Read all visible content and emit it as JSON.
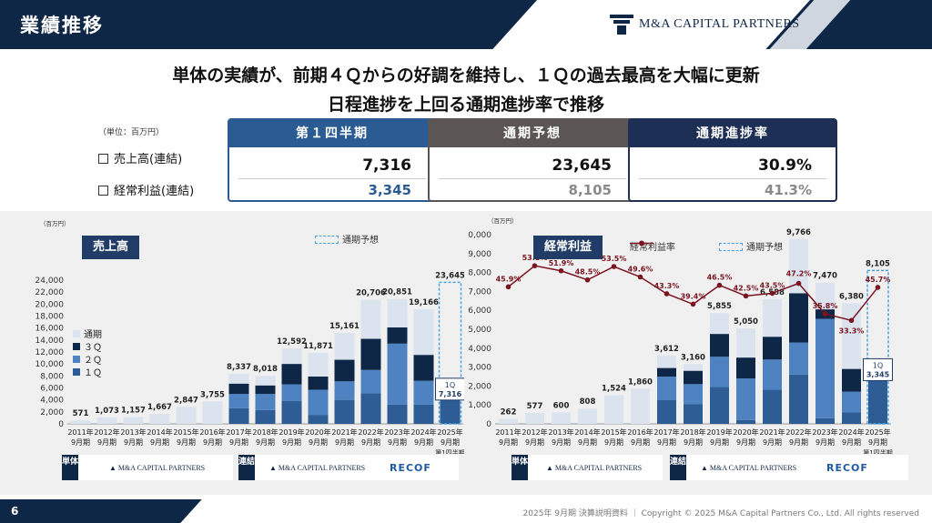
{
  "header": {
    "title": "業績推移",
    "logo": "M&A CAPITAL PARTNERS"
  },
  "headline": {
    "line1": "単体の実績が、前期４Ｑからの好調を維持し、１Ｑの過去最高を大幅に更新",
    "line2": "日程進捗を上回る通期進捗率で推移"
  },
  "summary": {
    "unit": "（単位：百万円）",
    "row1": "売上高(連結)",
    "row2": "経常利益(連結)",
    "cols": [
      {
        "label": "第１四半期",
        "v1": "7,316",
        "v2": "3,345",
        "v2color": "#2a5b93"
      },
      {
        "label": "通期予想",
        "v1": "23,645",
        "v2": "8,105",
        "v2color": "#8a8a8a"
      },
      {
        "label": "通期進捗率",
        "v1": "30.9%",
        "v2": "41.3%",
        "v2color": "#8a8a8a"
      }
    ]
  },
  "colors": {
    "q1": "#2e5c94",
    "q2": "#4e82c1",
    "q3": "#0f2747",
    "annual": "#dbe3ee",
    "forecast": "#4aa3df",
    "line": "#7a1420"
  },
  "chart_data": [
    {
      "type": "bar",
      "title": "売上高",
      "unit": "（百万円）",
      "legend_forecast": "通期予想",
      "stack_labels": [
        "通期",
        "３Ｑ",
        "２Ｑ",
        "１Ｑ"
      ],
      "categories": [
        [
          "2011年",
          "9月期"
        ],
        [
          "2012年",
          "9月期"
        ],
        [
          "2013年",
          "9月期"
        ],
        [
          "2014年",
          "9月期"
        ],
        [
          "2015年",
          "9月期"
        ],
        [
          "2016年",
          "9月期"
        ],
        [
          "2017年",
          "9月期"
        ],
        [
          "2018年",
          "9月期"
        ],
        [
          "2019年",
          "9月期"
        ],
        [
          "2020年",
          "9月期"
        ],
        [
          "2021年",
          "9月期"
        ],
        [
          "2022年",
          "9月期"
        ],
        [
          "2023年",
          "9月期"
        ],
        [
          "2024年",
          "9月期"
        ],
        [
          "2025年",
          "9月期",
          "第1四半期"
        ]
      ],
      "totals": [
        571,
        1073,
        1157,
        1667,
        2847,
        3755,
        8337,
        8018,
        12592,
        11871,
        15161,
        20706,
        20851,
        19166,
        null
      ],
      "total_labels": [
        "571",
        "1,073",
        "1,157",
        "1,667",
        "2,847",
        "3,755",
        "8,337",
        "8,018",
        "12,592",
        "11,871",
        "15,161",
        "20,706",
        "20,851",
        "19,166",
        "23,645"
      ],
      "q1": [
        null,
        null,
        null,
        null,
        null,
        null,
        2600,
        2300,
        3800,
        1500,
        4000,
        5100,
        3200,
        3200,
        7316
      ],
      "q2": [
        null,
        null,
        null,
        null,
        null,
        null,
        2400,
        2700,
        2800,
        4200,
        3100,
        3900,
        10200,
        4000,
        null
      ],
      "q3": [
        null,
        null,
        null,
        null,
        null,
        null,
        1700,
        1400,
        3400,
        2200,
        3600,
        5200,
        2700,
        4300,
        null
      ],
      "forecast": 23645,
      "current_label": [
        "1Q",
        "7,316"
      ],
      "ylim": [
        0,
        24000
      ],
      "yticks": [
        0,
        2000,
        4000,
        6000,
        8000,
        10000,
        12000,
        14000,
        16000,
        18000,
        20000,
        22000,
        24000
      ],
      "ytick_labels": [
        "0",
        "2,000",
        "4,000",
        "6,000",
        "8,000",
        "10,000",
        "12,000",
        "14,000",
        "16,000",
        "18,000",
        "20,000",
        "22,000",
        "24,000"
      ]
    },
    {
      "type": "bar",
      "title": "経常利益",
      "unit": "（百万円）",
      "legend_line": "経常利益率",
      "legend_forecast": "通期予想",
      "categories": [
        [
          "2011年",
          "9月期"
        ],
        [
          "2012年",
          "9月期"
        ],
        [
          "2013年",
          "9月期"
        ],
        [
          "2014年",
          "9月期"
        ],
        [
          "2015年",
          "9月期"
        ],
        [
          "2016年",
          "9月期"
        ],
        [
          "2017年",
          "9月期"
        ],
        [
          "2018年",
          "9月期"
        ],
        [
          "2019年",
          "9月期"
        ],
        [
          "2020年",
          "9月期"
        ],
        [
          "2021年",
          "9月期"
        ],
        [
          "2022年",
          "9月期"
        ],
        [
          "2023年",
          "9月期"
        ],
        [
          "2024年",
          "9月期"
        ],
        [
          "2025年",
          "9月期",
          "第1四半期"
        ]
      ],
      "totals": [
        262,
        577,
        600,
        808,
        1524,
        1860,
        3612,
        3160,
        5855,
        5050,
        6588,
        9766,
        7470,
        6380,
        null
      ],
      "total_labels": [
        "262",
        "577",
        "600",
        "808",
        "1,524",
        "1,860",
        "3,612",
        "3,160",
        "5,855",
        "5,050",
        "6,588",
        "9,766",
        "7,470",
        "6,380",
        "8,105"
      ],
      "q1": [
        null,
        null,
        null,
        null,
        null,
        null,
        1250,
        1050,
        1950,
        200,
        1800,
        2600,
        300,
        600,
        3345
      ],
      "q2": [
        null,
        null,
        null,
        null,
        null,
        null,
        1250,
        1050,
        1600,
        2200,
        1600,
        1700,
        5250,
        1100,
        null
      ],
      "q3": [
        null,
        null,
        null,
        null,
        null,
        null,
        450,
        700,
        1200,
        1100,
        1200,
        2600,
        500,
        1200,
        null
      ],
      "forecast": 8105,
      "current_label": [
        "1Q",
        "3,345"
      ],
      "margin": [
        45.9,
        53.8,
        51.9,
        48.5,
        53.5,
        49.6,
        43.3,
        39.4,
        46.5,
        42.5,
        43.5,
        47.2,
        35.8,
        33.3,
        45.7
      ],
      "margin_labels": [
        "45.9%",
        "53.8%",
        "51.9%",
        "48.5%",
        "53.5%",
        "49.6%",
        "43.3%",
        "39.4%",
        "46.5%",
        "42.5%",
        "43.5%",
        "47.2%",
        "35.8%",
        "33.3%",
        "45.7%"
      ],
      "ylim": [
        0,
        10000
      ],
      "yticks": [
        0,
        1000,
        2000,
        3000,
        4000,
        5000,
        6000,
        7000,
        8000,
        9000,
        10000
      ],
      "ytick_labels": [
        "0",
        "1,000",
        "2,000",
        "3,000",
        "4,000",
        "5,000",
        "6,000",
        "7,000",
        "8,000",
        "9,000",
        "10,000"
      ]
    }
  ],
  "segments": {
    "single": "単体",
    "consolidated": "連結",
    "recof": "RECOF"
  },
  "footer": {
    "page": "6",
    "text": "2025年 9月期 決算説明資料 ｜ Copyright © 2025 M&A Capital Partners Co., Ltd. All rights reserved"
  }
}
